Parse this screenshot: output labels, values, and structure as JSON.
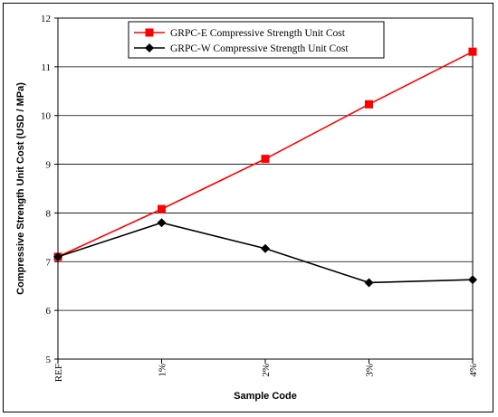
{
  "chart_data": {
    "type": "line",
    "categories": [
      "REF",
      "1%",
      "2%",
      "3%",
      "4%"
    ],
    "series": [
      {
        "name": "GRPC-E Compressive Strength Unit Cost",
        "values": [
          7.1,
          8.08,
          9.11,
          10.23,
          11.31
        ],
        "color": "#ff0000",
        "marker": "square"
      },
      {
        "name": "GRPC-W Compressive Strength Unit Cost",
        "values": [
          7.1,
          7.8,
          7.27,
          6.57,
          6.63
        ],
        "color": "#000000",
        "marker": "diamond"
      }
    ],
    "xlabel": "Sample Code",
    "ylabel": "Compressive Strength Unit Cost (USD / MPa)",
    "ylim": [
      5,
      12
    ],
    "yticks": [
      5,
      6,
      7,
      8,
      9,
      10,
      11,
      12
    ],
    "grid": "horizontal",
    "legend": "top-center"
  }
}
